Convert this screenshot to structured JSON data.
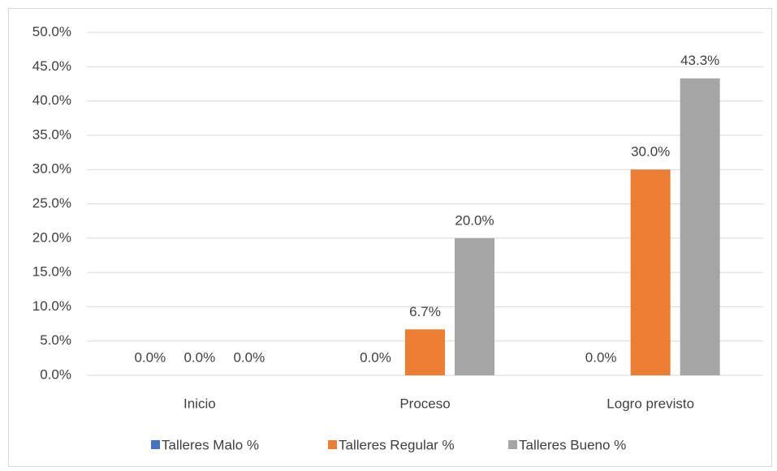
{
  "chart_data": {
    "type": "bar",
    "categories": [
      "Inicio",
      "Proceso",
      "Logro previsto"
    ],
    "series": [
      {
        "name": "Talleres Malo %",
        "color": "#4472c4",
        "values": [
          0,
          0,
          0
        ],
        "value_labels": [
          "0.0%",
          "0.0%",
          "0.0%"
        ]
      },
      {
        "name": "Talleres Regular %",
        "color": "#ed7d31",
        "values": [
          0,
          6.7,
          30
        ],
        "value_labels": [
          "0.0%",
          "6.7%",
          "30.0%"
        ]
      },
      {
        "name": "Talleres Bueno %",
        "color": "#a5a5a5",
        "values": [
          0,
          20,
          43.3
        ],
        "value_labels": [
          "0.0%",
          "20.0%",
          "43.3%"
        ]
      }
    ],
    "ylim": [
      0,
      50
    ],
    "yticks": [
      {
        "value": 0,
        "label": "0.0%"
      },
      {
        "value": 5,
        "label": "5.0%"
      },
      {
        "value": 10,
        "label": "10.0%"
      },
      {
        "value": 15,
        "label": "15.0%"
      },
      {
        "value": 20,
        "label": "20.0%"
      },
      {
        "value": 25,
        "label": "25.0%"
      },
      {
        "value": 30,
        "label": "30.0%"
      },
      {
        "value": 35,
        "label": "35.0%"
      },
      {
        "value": 40,
        "label": "40.0%"
      },
      {
        "value": 45,
        "label": "45.0%"
      },
      {
        "value": 50,
        "label": "50.0%"
      }
    ],
    "grid": true,
    "legend": "bottom"
  }
}
